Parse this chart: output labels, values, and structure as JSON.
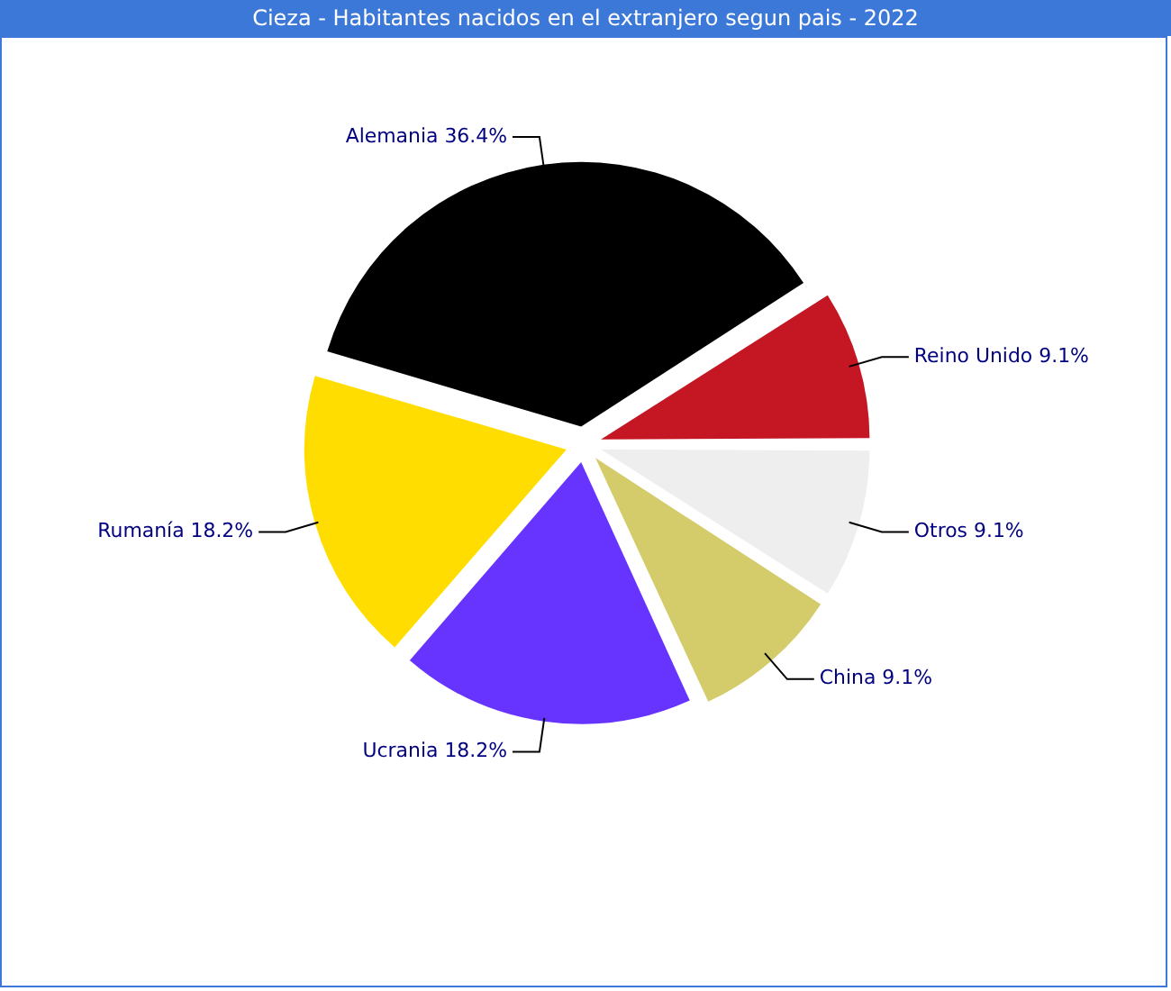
{
  "chart_data": {
    "type": "pie",
    "title": "Cieza - Habitantes nacidos en el extranjero segun pais - 2022",
    "categories": [
      "Otros",
      "China",
      "Ucrania",
      "Rumanía",
      "Alemania",
      "Reino Unido"
    ],
    "values": [
      9.1,
      9.1,
      18.2,
      18.2,
      36.4,
      9.1
    ],
    "value_labels": [
      "9.1%",
      "9.1%",
      "18.2%",
      "18.2%",
      "36.4%",
      "9.1%"
    ],
    "colors": [
      "#eeeeee",
      "#d4cc6a",
      "#6633ff",
      "#ffdd00",
      "#000000",
      "#c41623"
    ]
  }
}
